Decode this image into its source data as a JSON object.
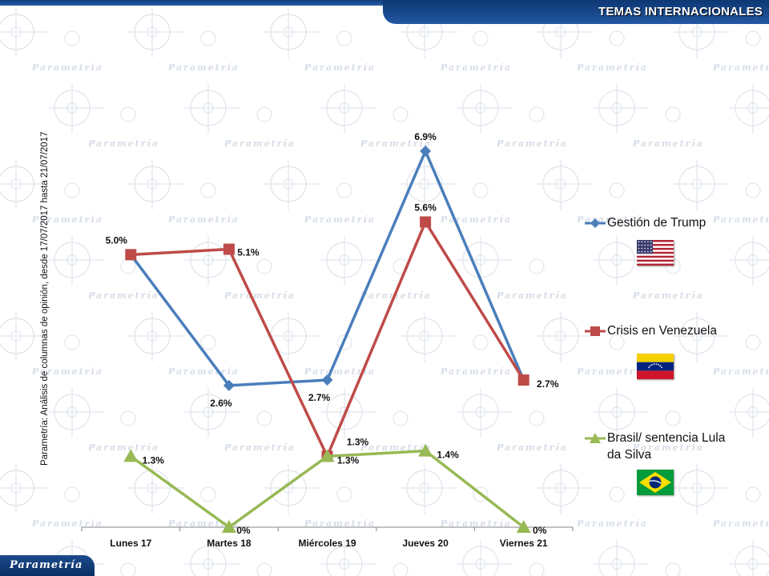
{
  "header": {
    "title": "TEMAS INTERNACIONALES"
  },
  "source_note": "Parametría: Análisis de columnas de opinión, desde 17/07/2017 hasta 21/07/2017",
  "watermark_text": "Parametría",
  "footer": {
    "logo_text": "Parametría"
  },
  "colors": {
    "trump": "#4a7ebb",
    "venezuela": "#be4b48",
    "brasil": "#98b954",
    "header_bg": "#1a4b92"
  },
  "chart_data": {
    "type": "line",
    "title": "",
    "xlabel": "",
    "ylabel": "",
    "ylim": [
      0,
      7.5
    ],
    "grid": false,
    "legend_position": "right",
    "categories": [
      "Lunes 17",
      "Martes 18",
      "Miércoles 19",
      "Jueves 20",
      "Viernes 21"
    ],
    "series": [
      {
        "name": "Gestión de Trump",
        "marker": "diamond",
        "flag": "usa",
        "values": [
          5.0,
          2.6,
          2.7,
          6.9,
          2.7
        ],
        "labels": [
          "",
          "2.6%",
          "2.7%",
          "6.9%",
          ""
        ]
      },
      {
        "name": "Crisis en Venezuela",
        "marker": "square",
        "flag": "venezuela",
        "values": [
          5.0,
          5.1,
          1.3,
          5.6,
          2.7
        ],
        "labels": [
          "5.0%",
          "5.1%",
          "1.3%",
          "5.6%",
          "2.7%"
        ]
      },
      {
        "name": "Brasil/ sentencia Lula da Silva",
        "legend_lines": [
          "Brasil/ sentencia Lula",
          "da Silva"
        ],
        "marker": "triangle",
        "flag": "brasil",
        "values": [
          1.3,
          0,
          1.3,
          1.4,
          0
        ],
        "labels": [
          "1.3%",
          "0%",
          "1.3%",
          "1.4%",
          "0%"
        ]
      }
    ]
  }
}
